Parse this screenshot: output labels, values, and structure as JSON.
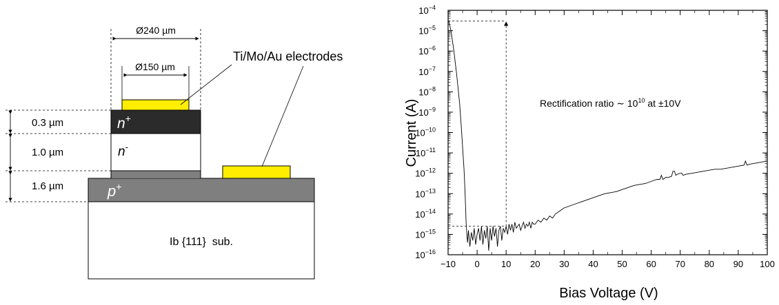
{
  "diagram": {
    "dia_outer": "Ø240 µm",
    "dia_inner": "Ø150 µm",
    "electrodes_label": "Ti/Mo/Au electrodes",
    "thickness_1": "0.3 µm",
    "thickness_2": "1.0 µm",
    "thickness_3": "1.6 µm",
    "layer_nplus": {
      "base": "n",
      "sup": "+"
    },
    "layer_nminus": {
      "base": "n",
      "sup": "-"
    },
    "layer_pplus": {
      "base": "p",
      "sup": "+"
    },
    "substrate_label": "Ib {111}  sub.",
    "colors": {
      "electrode": "#ffee00",
      "nplus": "#2b2b2b",
      "pplus": "#7f7f7f",
      "substrate": "#ffffff"
    }
  },
  "chart_data": {
    "type": "line",
    "xlabel": "Bias Voltage (V)",
    "ylabel": "Current (A)",
    "xlim": [
      -10,
      100
    ],
    "ylim_log10": [
      -16,
      -4
    ],
    "yscale": "log",
    "xticks": [
      -10,
      0,
      10,
      20,
      30,
      40,
      50,
      60,
      70,
      80,
      90,
      100
    ],
    "yticks_exp": [
      -4,
      -5,
      -6,
      -7,
      -8,
      -9,
      -10,
      -11,
      -12,
      -13,
      -14,
      -15,
      -16
    ],
    "ytick_base": "10",
    "annotation": {
      "prefix": "Rectification ratio ∼ 10",
      "exp": "10",
      "suffix": " at ±10V"
    },
    "reference_levels": {
      "high_A": 3e-05,
      "low_A": 2.5e-15,
      "at_V": 10
    },
    "series": [
      {
        "color": "#000000",
        "x": [
          -9.8,
          -9,
          -8,
          -7,
          -6,
          -5.5,
          -5,
          -4.5,
          -4.2,
          -4,
          -3.8,
          -3.5,
          -3.3,
          -3,
          -2.5,
          -2,
          -1.5,
          -1,
          -0.5,
          0,
          0.5,
          1,
          1.5,
          2,
          2.5,
          3,
          3.5,
          4,
          4.5,
          5,
          5.5,
          6,
          6.5,
          7,
          7.5,
          8,
          8.5,
          9,
          9.5,
          10,
          10.5,
          11,
          11.5,
          12,
          12.5,
          13,
          13.5,
          14,
          14.5,
          15,
          15.5,
          16,
          16.5,
          17,
          17.5,
          18,
          18.5,
          19,
          19.5,
          20,
          21,
          22,
          23,
          24,
          25,
          26,
          27,
          28,
          29,
          30,
          32,
          34,
          36,
          38,
          40,
          42,
          44,
          46,
          48,
          50,
          52,
          54,
          56,
          58,
          60,
          62,
          63,
          63.5,
          64,
          64.5,
          65,
          66,
          67,
          67.5,
          68,
          68.5,
          69,
          70,
          70.5,
          71,
          72,
          74,
          76,
          78,
          80,
          82,
          84,
          86,
          88,
          90,
          92,
          92.5,
          93,
          94,
          96,
          98,
          100
        ],
        "y_log10": [
          -4.5,
          -5.0,
          -6.0,
          -7.2,
          -8.6,
          -9.6,
          -10.7,
          -11.8,
          -12.8,
          -13.6,
          -14.4,
          -15.1,
          -15.4,
          -14.8,
          -15.6,
          -14.9,
          -15.3,
          -14.7,
          -15.5,
          -15.0,
          -14.7,
          -15.3,
          -14.6,
          -15.5,
          -14.8,
          -15.2,
          -14.6,
          -15.8,
          -14.7,
          -15.3,
          -14.6,
          -15.1,
          -14.7,
          -15.6,
          -14.8,
          -14.6,
          -15.3,
          -14.7,
          -14.9,
          -14.6,
          -15.0,
          -14.5,
          -14.8,
          -14.5,
          -14.9,
          -14.4,
          -14.7,
          -14.6,
          -14.5,
          -14.8,
          -14.6,
          -14.4,
          -14.7,
          -14.5,
          -14.6,
          -14.4,
          -14.7,
          -14.4,
          -14.5,
          -14.5,
          -14.3,
          -14.4,
          -14.2,
          -14.3,
          -14.1,
          -14.2,
          -14.0,
          -13.9,
          -13.8,
          -13.7,
          -13.6,
          -13.5,
          -13.4,
          -13.3,
          -13.2,
          -13.1,
          -13.0,
          -12.95,
          -12.9,
          -12.8,
          -12.7,
          -12.6,
          -12.55,
          -12.5,
          -12.4,
          -12.3,
          -12.3,
          -12.1,
          -12.3,
          -12.25,
          -12.2,
          -12.2,
          -12.15,
          -11.9,
          -11.9,
          -12.1,
          -12.05,
          -12.0,
          -12.0,
          -12.1,
          -12.05,
          -12.0,
          -11.95,
          -11.9,
          -11.85,
          -11.8,
          -11.8,
          -11.75,
          -11.7,
          -11.65,
          -11.6,
          -11.4,
          -11.6,
          -11.55,
          -11.5,
          -11.45,
          -11.4
        ]
      }
    ]
  }
}
